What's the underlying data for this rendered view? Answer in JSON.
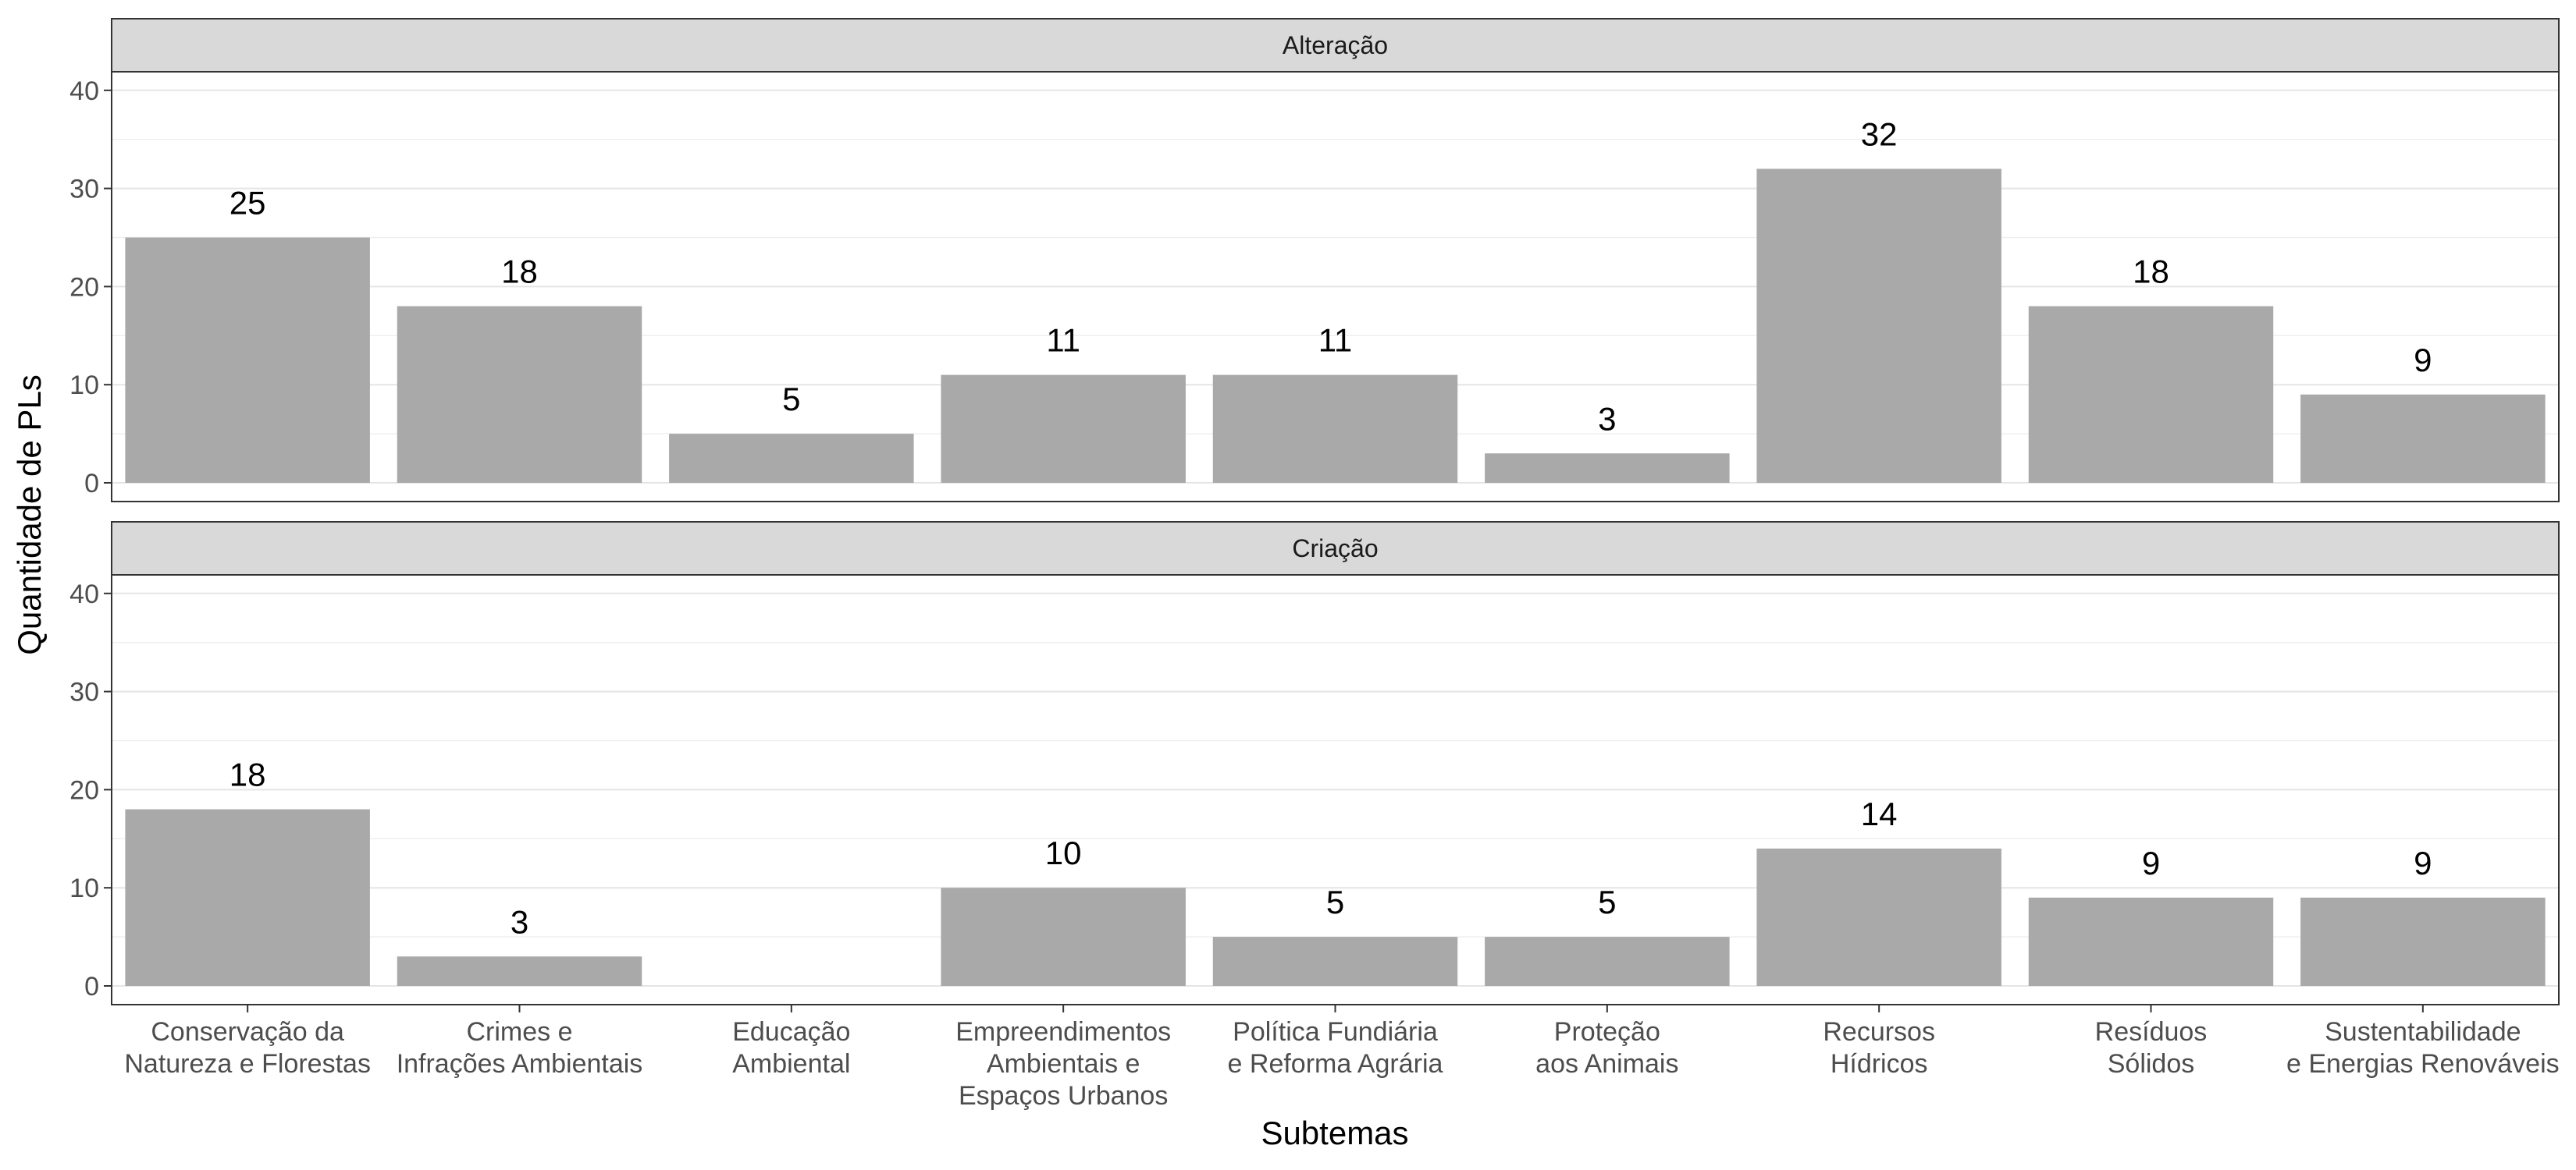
{
  "chart_data": {
    "type": "bar",
    "xlabel": "Subtemas",
    "ylabel": "Quantidade de PLs",
    "ylim": [
      0,
      42
    ],
    "yticks": [
      0,
      10,
      20,
      30,
      40
    ],
    "grid": true,
    "bar_color": "#a9a9a9",
    "strip_color": "#d9d9d9",
    "categories": [
      [
        "Conservação da",
        "Natureza e Florestas"
      ],
      [
        "Crimes e",
        "Infrações Ambientais"
      ],
      [
        "Educação",
        "Ambiental"
      ],
      [
        "Empreendimentos",
        "Ambientais e",
        "Espaços Urbanos"
      ],
      [
        "Política Fundiária",
        "e Reforma Agrária"
      ],
      [
        "Proteção",
        "aos Animais"
      ],
      [
        "Recursos",
        "Hídricos"
      ],
      [
        "Resíduos",
        "Sólidos"
      ],
      [
        "Sustentabilidade",
        "e Energias Renováveis"
      ]
    ],
    "panels": [
      {
        "name": "Alteração",
        "values": [
          25,
          18,
          5,
          11,
          11,
          3,
          32,
          18,
          9
        ]
      },
      {
        "name": "Criação",
        "values": [
          18,
          3,
          null,
          10,
          5,
          5,
          14,
          9,
          9
        ]
      }
    ]
  }
}
